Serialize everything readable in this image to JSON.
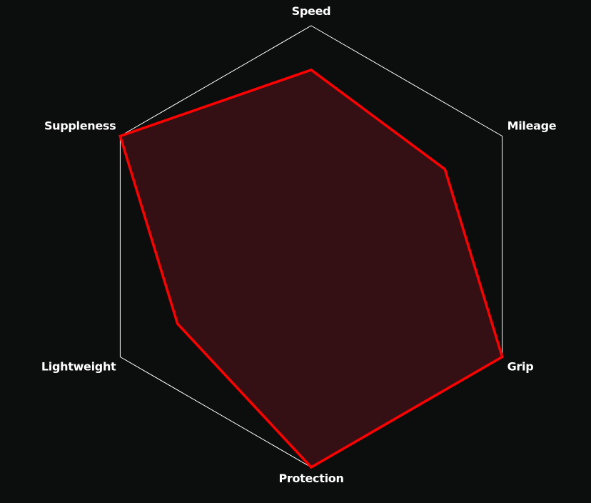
{
  "chart_data": {
    "type": "radar",
    "axes": [
      "Speed",
      "Mileage",
      "Grip",
      "Protection",
      "Lightweight",
      "Suppleness"
    ],
    "range": [
      0,
      10
    ],
    "series": [
      {
        "values": [
          8,
          7,
          10,
          10,
          7,
          10
        ],
        "color": "#ff0000",
        "fill": "#341014"
      }
    ],
    "grid": "outer hexagon only",
    "colors": {
      "background": "#0c0e0d",
      "grid": "#ffffff",
      "label": "#ffffff"
    }
  }
}
